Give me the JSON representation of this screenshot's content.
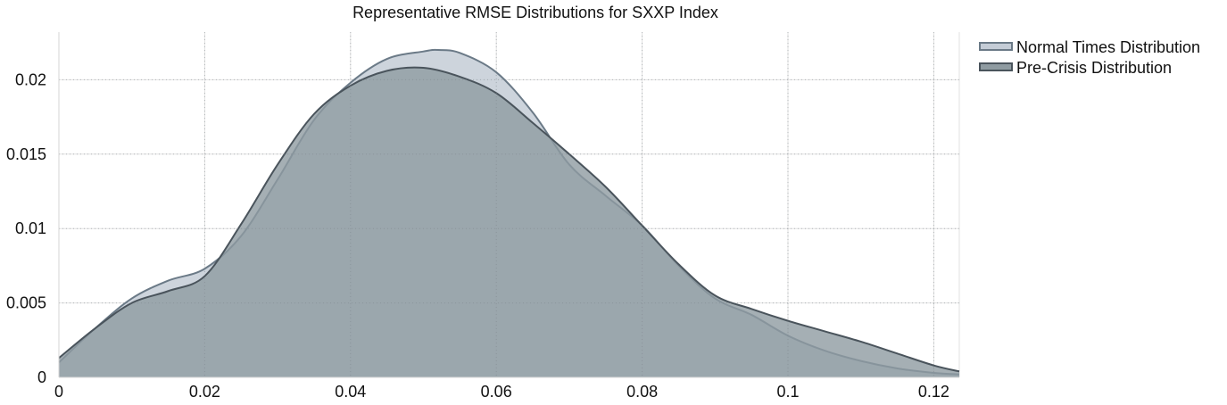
{
  "chart_data": {
    "type": "area",
    "title": "Representative RMSE Distributions for SXXP Index",
    "xlabel": "",
    "ylabel": "",
    "xlim": [
      0,
      0.1235
    ],
    "ylim": [
      0,
      0.0232
    ],
    "x_ticks": [
      0,
      0.02,
      0.04,
      0.06,
      0.08,
      0.1,
      0.12
    ],
    "x_tick_labels": [
      "0",
      "0.02",
      "0.04",
      "0.06",
      "0.08",
      "0.1",
      "0.12"
    ],
    "y_ticks": [
      0,
      0.005,
      0.01,
      0.015,
      0.02
    ],
    "y_tick_labels": [
      "0",
      "0.005",
      "0.01",
      "0.015",
      "0.02"
    ],
    "grid": true,
    "legend_position": "top-right",
    "series": [
      {
        "name": "Normal Times Distribution",
        "fill": "#c4ccd6",
        "line": "#6b7a87",
        "x": [
          0,
          0.005,
          0.01,
          0.015,
          0.02,
          0.025,
          0.03,
          0.035,
          0.04,
          0.045,
          0.05,
          0.052,
          0.055,
          0.06,
          0.065,
          0.07,
          0.075,
          0.08,
          0.085,
          0.09,
          0.095,
          0.1,
          0.105,
          0.11,
          0.115,
          0.12,
          0.1235
        ],
        "y": [
          0.001,
          0.0033,
          0.0053,
          0.0065,
          0.0073,
          0.0095,
          0.0133,
          0.0173,
          0.0198,
          0.0214,
          0.0219,
          0.022,
          0.0218,
          0.0205,
          0.0178,
          0.0143,
          0.0122,
          0.0102,
          0.0075,
          0.0053,
          0.0042,
          0.0028,
          0.0018,
          0.0011,
          0.0006,
          0.0003,
          0.0002
        ]
      },
      {
        "name": "Pre-Crisis Distribution",
        "fill": "#8f9ba1",
        "line": "#4a545c",
        "x": [
          0,
          0.005,
          0.01,
          0.015,
          0.02,
          0.025,
          0.03,
          0.035,
          0.04,
          0.045,
          0.05,
          0.055,
          0.06,
          0.065,
          0.07,
          0.075,
          0.08,
          0.085,
          0.09,
          0.095,
          0.1,
          0.105,
          0.11,
          0.115,
          0.12,
          0.1235
        ],
        "y": [
          0.0013,
          0.0033,
          0.005,
          0.0058,
          0.0068,
          0.0103,
          0.0143,
          0.0177,
          0.0196,
          0.0206,
          0.0208,
          0.0202,
          0.0191,
          0.0171,
          0.015,
          0.0128,
          0.0102,
          0.0076,
          0.0055,
          0.0046,
          0.0038,
          0.0031,
          0.0024,
          0.0016,
          0.0008,
          0.0004
        ]
      }
    ]
  }
}
